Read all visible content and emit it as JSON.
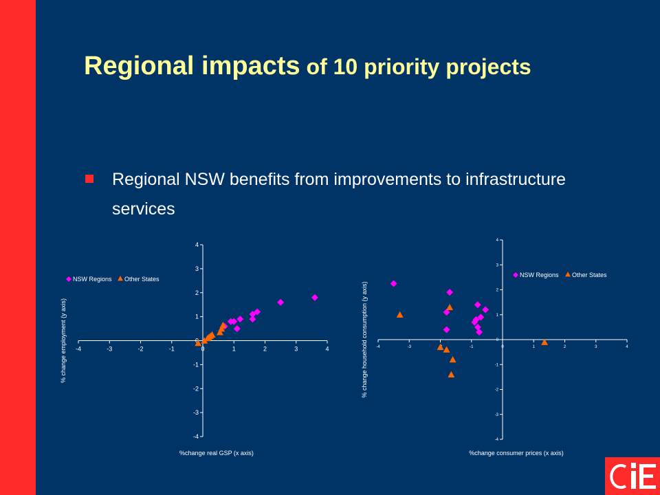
{
  "slide": {
    "title_part1": "Regional impacts",
    "title_part2": " of 10 priority projects",
    "bullet": "Regional NSW benefits from improvements to infrastructure services"
  },
  "logo": {
    "text": "CIE"
  },
  "colors": {
    "background": "#003366",
    "accent_bar": "#ff2a2a",
    "title": "#ffff99",
    "nsw": "#ff00ff",
    "other": "#ff6600"
  },
  "chart_data": [
    {
      "type": "scatter",
      "xlabel": "%change real GSP (x axis)",
      "ylabel": "% change employment (y axis)",
      "xlim": [
        -4,
        4
      ],
      "ylim": [
        -4,
        4
      ],
      "xticks": [
        "-4",
        "-3",
        "-2",
        "-1",
        "0",
        "1",
        "2",
        "3",
        "4"
      ],
      "yticks": [
        "4",
        "3",
        "2",
        "1",
        "0",
        "-1",
        "-2",
        "-3",
        "-4"
      ],
      "legend_position": "top-left",
      "grid": false,
      "series": [
        {
          "name": "NSW Regions",
          "marker": "diamond",
          "color": "#ff00ff",
          "points": [
            [
              0.7,
              0.6
            ],
            [
              0.9,
              0.8
            ],
            [
              1.0,
              0.8
            ],
            [
              1.1,
              0.5
            ],
            [
              1.2,
              0.9
            ],
            [
              1.6,
              1.1
            ],
            [
              1.6,
              0.9
            ],
            [
              1.75,
              1.2
            ],
            [
              2.5,
              1.6
            ],
            [
              3.6,
              1.8
            ]
          ]
        },
        {
          "name": "Other States",
          "marker": "triangle",
          "color": "#ff6600",
          "points": [
            [
              -0.15,
              -0.1
            ],
            [
              0.05,
              0.0
            ],
            [
              0.15,
              0.1
            ],
            [
              0.2,
              0.15
            ],
            [
              0.25,
              0.2
            ],
            [
              0.3,
              0.25
            ],
            [
              0.55,
              0.35
            ],
            [
              0.6,
              0.5
            ],
            [
              0.65,
              0.65
            ]
          ]
        }
      ]
    },
    {
      "type": "scatter",
      "xlabel": "%change consumer prices (x axis)",
      "ylabel": "% change household consumption (y axis)",
      "xlim": [
        -4,
        4
      ],
      "ylim": [
        -4,
        4
      ],
      "xticks": [
        "-4",
        "-3",
        "-2",
        "-1",
        "0",
        "1",
        "2",
        "3",
        "4"
      ],
      "yticks": [
        "4",
        "3",
        "2",
        "1",
        "0",
        "-1",
        "-2",
        "-3",
        "-4"
      ],
      "legend_position": "top-right",
      "grid": false,
      "series": [
        {
          "name": "NSW Regions",
          "marker": "diamond",
          "color": "#ff00ff",
          "points": [
            [
              -3.5,
              2.25
            ],
            [
              -1.8,
              1.1
            ],
            [
              -1.8,
              0.4
            ],
            [
              -1.7,
              1.9
            ],
            [
              -0.9,
              0.7
            ],
            [
              -0.8,
              0.5
            ],
            [
              -0.75,
              0.3
            ],
            [
              -0.85,
              0.8
            ],
            [
              -0.7,
              0.9
            ],
            [
              -0.8,
              1.4
            ],
            [
              -0.55,
              1.2
            ]
          ]
        },
        {
          "name": "Other States",
          "marker": "triangle",
          "color": "#ff6600",
          "points": [
            [
              -3.3,
              1.0
            ],
            [
              -2.0,
              -0.3
            ],
            [
              -1.8,
              -0.4
            ],
            [
              -1.7,
              1.3
            ],
            [
              -1.6,
              -0.8
            ],
            [
              -1.65,
              -1.4
            ],
            [
              1.35,
              -0.1
            ]
          ]
        }
      ]
    }
  ]
}
